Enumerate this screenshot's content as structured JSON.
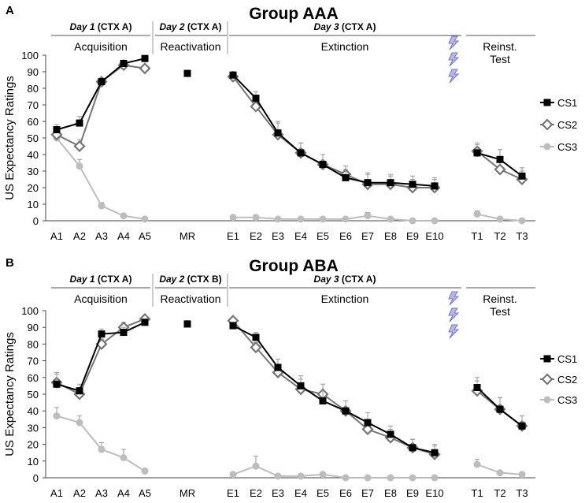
{
  "colors": {
    "cs1": "#000000",
    "cs2": "#757575",
    "cs3": "#bdbdbd",
    "bolt": "#7575c4"
  },
  "icons": {
    "shock": "lightning-bolt-icon"
  },
  "chart_data": [
    {
      "type": "line",
      "panel": "A",
      "title": "Group AAA",
      "headers": [
        {
          "day": "Day 1",
          "ctx": "(CTX A)",
          "phase": "Acquisition"
        },
        {
          "day": "Day 2",
          "ctx": "(CTX A)",
          "phase": "Reactivation"
        },
        {
          "day": "Day 3",
          "ctx": "(CTX A)",
          "phase": "Extinction"
        },
        {
          "day": "",
          "ctx": "",
          "phase": "Reinst. Test"
        }
      ],
      "phase_labels": {
        "reinst_1": "Reinst.",
        "reinst_2": "Test"
      },
      "ylabel": "US Expectancy Ratings",
      "ylim": [
        0,
        100
      ],
      "yticks": [
        "0",
        "10",
        "20",
        "30",
        "40",
        "50",
        "60",
        "70",
        "80",
        "90",
        "100"
      ],
      "categories": [
        "A1",
        "A2",
        "A3",
        "A4",
        "A5",
        "MR",
        "E1",
        "E2",
        "E3",
        "E4",
        "E5",
        "E6",
        "E7",
        "E8",
        "E9",
        "E10",
        "T1",
        "T2",
        "T3"
      ],
      "series": [
        {
          "name": "CS1",
          "values": [
            55,
            59,
            84,
            95,
            98,
            89,
            88,
            74,
            53,
            41,
            34,
            26,
            23,
            23,
            22,
            21,
            41,
            37,
            27
          ]
        },
        {
          "name": "CS2",
          "values": [
            52,
            45,
            84,
            94,
            92,
            null,
            87,
            69,
            52,
            41,
            34,
            28,
            22,
            22,
            20,
            20,
            42,
            31,
            25
          ]
        },
        {
          "name": "CS3",
          "values": [
            50,
            33,
            9,
            3,
            1,
            null,
            2,
            2,
            1,
            1,
            1,
            1,
            3,
            1,
            0,
            0,
            4,
            1,
            0
          ]
        }
      ],
      "errors": {
        "CS1": [
          3,
          4,
          2,
          1,
          1,
          1,
          2,
          4,
          7,
          6,
          6,
          5,
          6,
          5,
          5,
          5,
          5,
          6,
          5
        ],
        "CS2": [
          3,
          4,
          2,
          1,
          1,
          null,
          2,
          4,
          7,
          6,
          6,
          5,
          6,
          5,
          5,
          5,
          5,
          6,
          5
        ],
        "CS3": [
          2,
          4,
          2,
          1,
          1,
          null,
          1,
          1,
          1,
          1,
          1,
          1,
          2,
          1,
          1,
          1,
          2,
          1,
          1
        ]
      },
      "shocks": 3
    },
    {
      "type": "line",
      "panel": "B",
      "title": "Group ABA",
      "headers": [
        {
          "day": "Day 1",
          "ctx": "(CTX A)",
          "phase": "Acquisition"
        },
        {
          "day": "Day 2",
          "ctx": "(CTX B)",
          "phase": "Reactivation"
        },
        {
          "day": "Day 3",
          "ctx": "(CTX A)",
          "phase": "Extinction"
        },
        {
          "day": "",
          "ctx": "",
          "phase": "Reinst. Test"
        }
      ],
      "phase_labels": {
        "reinst_1": "Reinst.",
        "reinst_2": "Test"
      },
      "ylabel": "US Expectancy Ratings",
      "ylim": [
        0,
        100
      ],
      "yticks": [
        "0",
        "10",
        "20",
        "30",
        "40",
        "50",
        "60",
        "70",
        "80",
        "90",
        "100"
      ],
      "categories": [
        "A1",
        "A2",
        "A3",
        "A4",
        "A5",
        "MR",
        "E1",
        "E2",
        "E3",
        "E4",
        "E5",
        "E6",
        "E7",
        "E8",
        "E9",
        "E10",
        "T1",
        "T2",
        "T3"
      ],
      "series": [
        {
          "name": "CS1",
          "values": [
            56,
            52,
            86,
            87,
            93,
            92,
            91,
            84,
            66,
            55,
            46,
            40,
            33,
            26,
            18,
            15,
            54,
            41,
            31
          ]
        },
        {
          "name": "CS2",
          "values": [
            57,
            50,
            80,
            90,
            95,
            null,
            94,
            78,
            63,
            53,
            50,
            40,
            29,
            24,
            18,
            14,
            52,
            41,
            31
          ]
        },
        {
          "name": "CS3",
          "values": [
            37,
            33,
            17,
            12,
            4,
            null,
            2,
            7,
            1,
            1,
            2,
            0,
            0,
            0,
            0,
            0,
            8,
            3,
            2
          ]
        }
      ],
      "errors": {
        "CS1": [
          6,
          4,
          3,
          3,
          2,
          2,
          2,
          3,
          5,
          6,
          6,
          6,
          6,
          5,
          5,
          5,
          6,
          7,
          6
        ],
        "CS2": [
          6,
          4,
          3,
          3,
          2,
          null,
          2,
          3,
          5,
          6,
          6,
          6,
          6,
          5,
          5,
          5,
          6,
          7,
          6
        ],
        "CS3": [
          5,
          4,
          4,
          5,
          1,
          null,
          1,
          6,
          1,
          1,
          1,
          1,
          1,
          1,
          1,
          1,
          3,
          1,
          1
        ]
      },
      "shocks": 3
    }
  ]
}
